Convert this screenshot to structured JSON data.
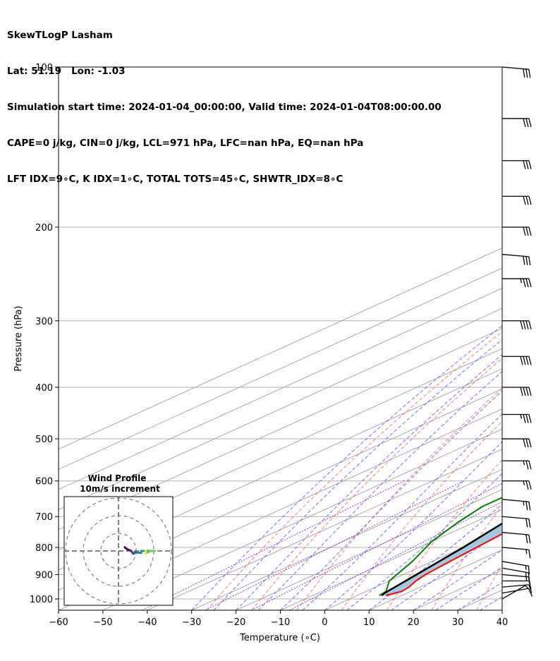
{
  "header": {
    "lines": [
      "SkewTLogP Lasham",
      "Lat: 51.19   Lon: -1.03",
      "Simulation start time: 2024-01-04_00:00:00, Valid time: 2024-01-04T08:00:00.00",
      "CAPE=0 j/kg, CIN=0 j/kg, LCL=971 hPa, LFC=nan hPa, EQ=nan hPa",
      "LFT IDX=9∘C, K IDX=1∘C, TOTAL TOTS=45∘C, SHWTR_IDX=8∘C"
    ]
  },
  "colors": {
    "temperature": "#ff0000",
    "dewpoint": "#008000",
    "parcel": "#000000",
    "cape_cin_fill": "#a0c4de",
    "dry_adiabat": "#ff4040",
    "moist_adiabat": "#4040ff",
    "mixing_ratio": "#9933cc",
    "isotherm": "#a0a0a0"
  },
  "chart_data": [
    {
      "type": "line",
      "subtype": "skew-t log-p",
      "xlabel": "Temperature (∘C)",
      "ylabel": "Pressure (hPa)",
      "xlim": [
        -60,
        40
      ],
      "ylim": [
        1050,
        100
      ],
      "y_scale": "log",
      "x_ticks": [
        -60,
        -50,
        -40,
        -30,
        -20,
        -10,
        0,
        10,
        20,
        30,
        40
      ],
      "y_ticks": [
        1000,
        900,
        800,
        700,
        600,
        500,
        400,
        300,
        200,
        100
      ],
      "grid": true,
      "series": [
        {
          "name": "",
          "key": "temperature",
          "points": [
            [
              6.5,
              985
            ],
            [
              8,
              968
            ],
            [
              7.5,
              950
            ],
            [
              6,
              925
            ],
            [
              5,
              900
            ],
            [
              4,
              850
            ],
            [
              3,
              800
            ],
            [
              2.5,
              775
            ],
            [
              1.5,
              725
            ],
            [
              0,
              700
            ],
            [
              -0.5,
              650
            ],
            [
              -1.5,
              600
            ],
            [
              -3,
              550
            ],
            [
              -4.5,
              500
            ],
            [
              -5.5,
              450
            ],
            [
              -7,
              430
            ],
            [
              -11,
              380
            ],
            [
              -15,
              340
            ],
            [
              -18,
              305
            ],
            [
              -17,
              280
            ],
            [
              -16,
              255
            ],
            [
              -10,
              220
            ],
            [
              -4,
              190
            ],
            [
              2,
              160
            ],
            [
              6,
              140
            ],
            [
              9,
              125
            ],
            [
              11,
              110
            ],
            [
              12,
              100
            ]
          ]
        },
        {
          "name": "",
          "key": "dewpoint",
          "points": [
            [
              5,
              985
            ],
            [
              4.5,
              968
            ],
            [
              0,
              925
            ],
            [
              -4.5,
              850
            ],
            [
              -10,
              780
            ],
            [
              -13.5,
              720
            ],
            [
              -16,
              670
            ],
            [
              -16,
              620
            ],
            [
              -22,
              575
            ],
            [
              -22.5,
              530
            ],
            [
              -17.5,
              505
            ],
            [
              -11,
              470
            ],
            [
              -9.5,
              440
            ],
            [
              -13,
              395
            ],
            [
              -17,
              360
            ],
            [
              -20,
              335
            ],
            [
              -21,
              305
            ],
            [
              -21.5,
              285
            ],
            [
              -24,
              265
            ],
            [
              -24.5,
              245
            ],
            [
              -29,
              230
            ],
            [
              -30,
              210
            ],
            [
              -26,
              200
            ],
            [
              -21,
              183
            ],
            [
              -18,
              170
            ],
            [
              -14.5,
              155
            ],
            [
              -10,
              135
            ],
            [
              -6.5,
              120
            ],
            [
              -2,
              100
            ]
          ]
        },
        {
          "name": "",
          "key": "parcel",
          "points": [
            [
              5.5,
              985
            ],
            [
              5,
              975
            ],
            [
              3,
              900
            ],
            [
              0,
              800
            ],
            [
              -4,
              700
            ],
            [
              -9.5,
              600
            ],
            [
              -16,
              500
            ],
            [
              -25,
              400
            ],
            [
              -36,
              300
            ],
            [
              -44,
              250
            ],
            [
              -54,
              200
            ],
            [
              -61,
              170
            ],
            [
              -70,
              140
            ],
            [
              -80,
              120
            ],
            [
              -92,
              100
            ]
          ]
        }
      ],
      "wind_barbs": {
        "pressures": [
          1000,
          975,
          950,
          925,
          900,
          875,
          850,
          800,
          750,
          700,
          650,
          600,
          550,
          500,
          450,
          400,
          350,
          300,
          250,
          225,
          200,
          175,
          150,
          125,
          100
        ],
        "direction_deg": [
          240,
          260,
          265,
          270,
          275,
          280,
          280,
          275,
          275,
          275,
          275,
          270,
          270,
          270,
          270,
          270,
          270,
          270,
          270,
          275,
          270,
          270,
          270,
          270,
          275
        ],
        "speed_kt": [
          8,
          10,
          12,
          14,
          15,
          16,
          17,
          18,
          20,
          22,
          25,
          25,
          25,
          30,
          35,
          40,
          40,
          40,
          35,
          30,
          30,
          30,
          30,
          30,
          30
        ]
      },
      "inset": {
        "title": "Wind Profile",
        "subtitle": "10m/s increment",
        "type": "hodograph"
      }
    }
  ]
}
